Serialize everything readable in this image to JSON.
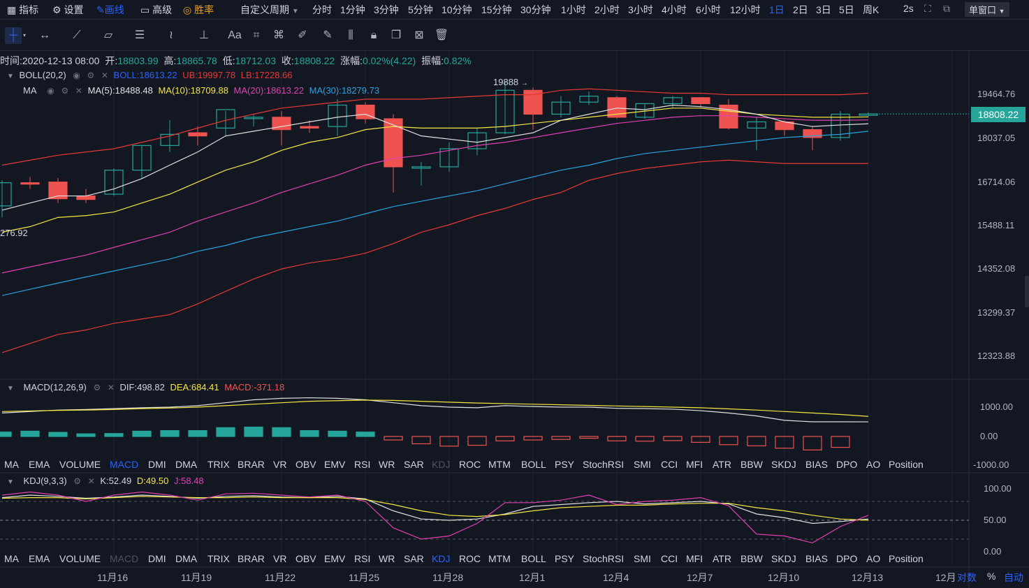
{
  "toolbar": {
    "indicator": "指标",
    "settings": "设置",
    "draw": "画线",
    "advanced": "高级",
    "winrate": "胜率",
    "custom_period": "自定义周期",
    "periods": [
      "分时",
      "1分钟",
      "3分钟",
      "5分钟",
      "10分钟",
      "15分钟",
      "30分钟",
      "1小时",
      "2小时",
      "3小时",
      "4小时",
      "6小时",
      "12小时",
      "1日",
      "2日",
      "3日",
      "5日",
      "周K"
    ],
    "active_period": "1日",
    "refresh": "2s",
    "window_mode": "单窗口"
  },
  "ohlc_header": {
    "time_label": "时间:",
    "time": "2020-12-13 08:00",
    "open_label": "开:",
    "open": "18803.99",
    "high_label": "高:",
    "high": "18865.78",
    "low_label": "低:",
    "low": "18712.03",
    "close_label": "收:",
    "close": "18808.22",
    "change_label": "涨幅:",
    "change": "0.02%(4.22)",
    "amplitude_label": "振幅:",
    "amplitude": "0.82%"
  },
  "boll": {
    "name": "BOLL(20,2)",
    "mid": "BOLL:18613.22",
    "ub": "UB:19997.78",
    "lb": "LB:17228.66"
  },
  "ma": {
    "name": "MA",
    "ma5": "MA(5):18488.48",
    "ma10": "MA(10):18709.88",
    "ma20": "MA(20):18613.22",
    "ma30": "MA(30):18279.73"
  },
  "price_axis": [
    "19464.76",
    "18037.05",
    "16714.06",
    "15488.11",
    "14352.08",
    "13299.37",
    "12323.88"
  ],
  "current_price": "18808.22",
  "annotations": {
    "high_marker": "19888",
    "low_marker": "276.92"
  },
  "macd": {
    "name": "MACD(12,26,9)",
    "dif": "DIF:498.82",
    "dea": "DEA:684.41",
    "macd": "MACD:-371.18",
    "axis": [
      "1000.00",
      "0.00",
      "-1000.00"
    ]
  },
  "indicator_list": [
    "MA",
    "EMA",
    "VOLUME",
    "MACD",
    "DMI",
    "DMA",
    "TRIX",
    "BRAR",
    "VR",
    "OBV",
    "EMV",
    "RSI",
    "WR",
    "SAR",
    "KDJ",
    "ROC",
    "MTM",
    "BOLL",
    "PSY",
    "StochRSI",
    "SMI",
    "CCI",
    "MFI",
    "ATR",
    "BBW",
    "SKDJ",
    "BIAS",
    "DPO",
    "AO",
    "Position"
  ],
  "kdj": {
    "name": "KDJ(9,3,3)",
    "k": "K:52.49",
    "d": "D:49.50",
    "j": "J:58.48",
    "axis": [
      "100.00",
      "50.00",
      "0.00"
    ]
  },
  "date_axis": [
    "11月16",
    "11月19",
    "11月22",
    "11月25",
    "11月28",
    "12月1",
    "12月4",
    "12月7",
    "12月10",
    "12月13",
    "12月"
  ],
  "bottom_right": {
    "log": "对数",
    "percent": "%",
    "auto": "自动"
  },
  "colors": {
    "up": "#26a69a",
    "down": "#ef5350",
    "boll_mid": "#2962ff",
    "boll_band": "#e53935",
    "ma5": "#e0e0e0",
    "ma10": "#f5e642",
    "ma20": "#e040b0",
    "ma30": "#29a3e0",
    "active": "#2962ff"
  }
}
